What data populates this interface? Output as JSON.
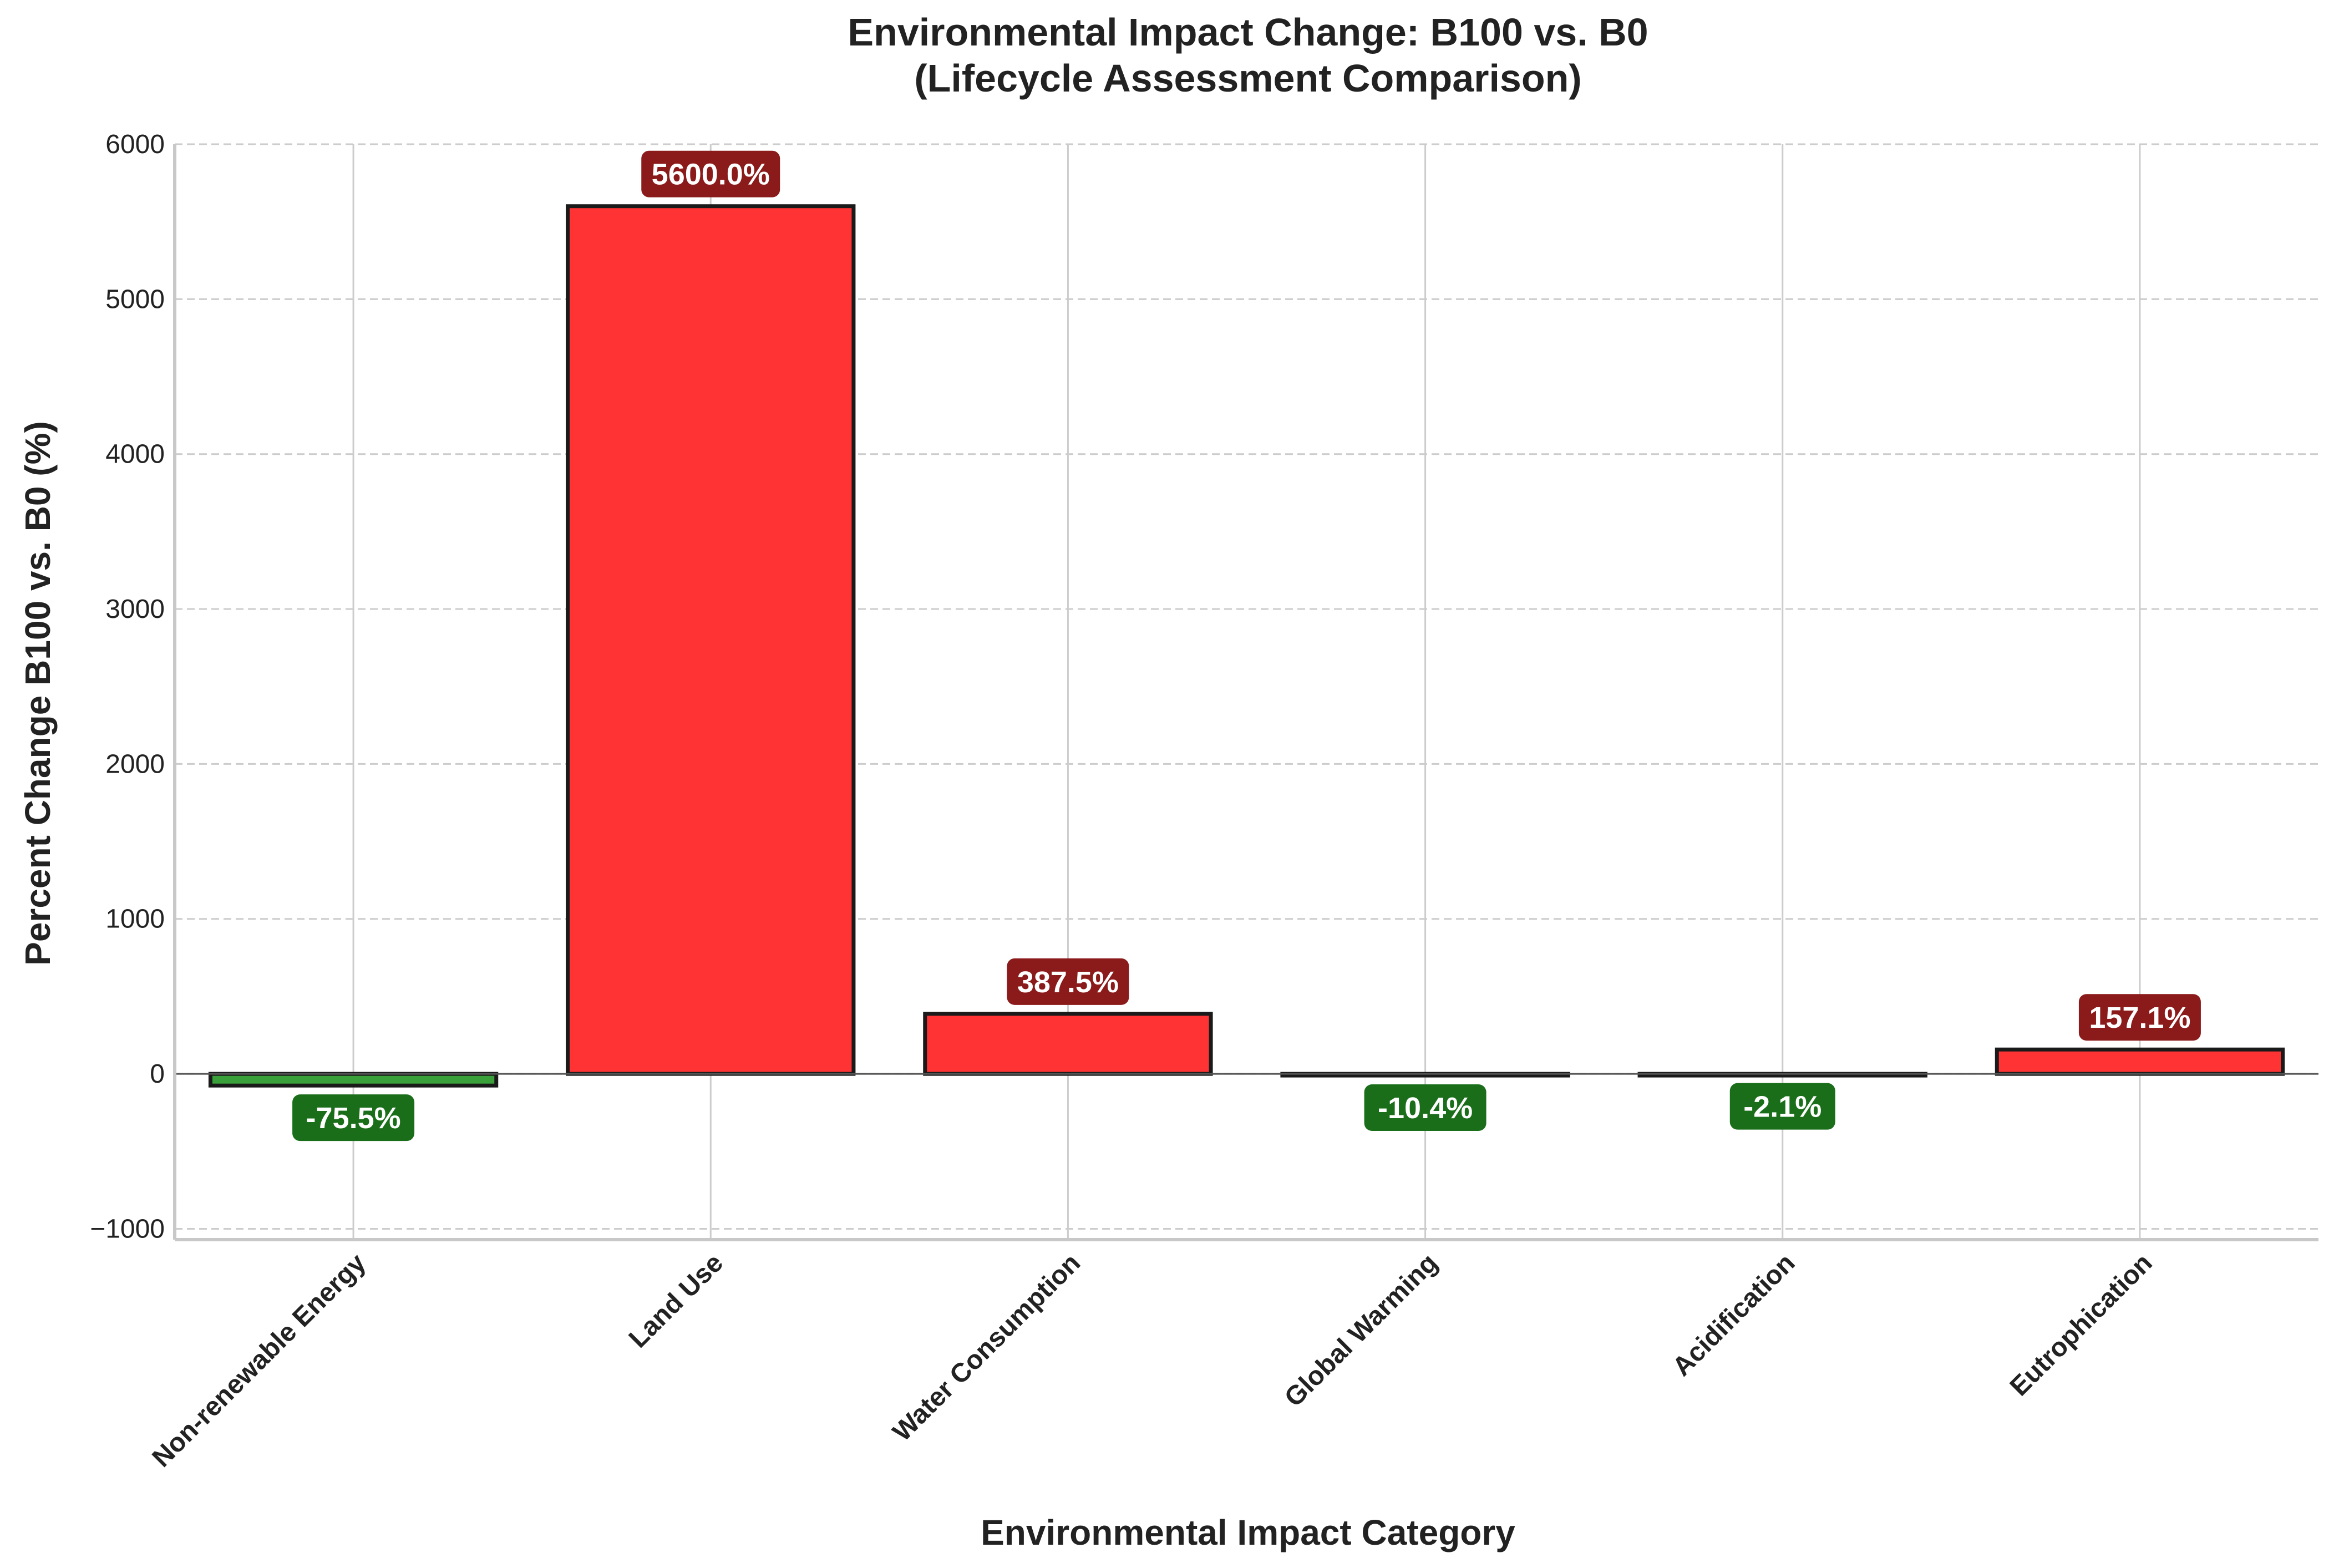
{
  "chart_data": {
    "type": "bar",
    "title_line1": "Environmental Impact Change: B100 vs. B0",
    "title_line2": "(Lifecycle Assessment Comparison)",
    "xlabel": "Environmental Impact Category",
    "ylabel": "Percent Change B100 vs. B0 (%)",
    "categories": [
      "Non-renewable Energy",
      "Land Use",
      "Water Consumption",
      "Global Warming",
      "Acidification",
      "Eutrophication"
    ],
    "values": [
      -75.5,
      5600.0,
      387.5,
      -10.4,
      -2.1,
      157.1
    ],
    "data_labels": [
      "-75.5%",
      "5600.0%",
      "387.5%",
      "-10.4%",
      "-2.1%",
      "157.1%"
    ],
    "ylim": [
      -1070,
      6000
    ],
    "yticks": [
      -1000,
      0,
      1000,
      2000,
      3000,
      4000,
      5000,
      6000
    ],
    "ytick_labels": [
      "−1000",
      "0",
      "1000",
      "2000",
      "3000",
      "4000",
      "5000",
      "6000"
    ],
    "grid": true,
    "colors": {
      "increase_bar": "#ff3333",
      "decrease_bar": "#3aa03a",
      "increase_label_bg": "#8b1a1a",
      "decrease_label_bg": "#1a6e1a",
      "bar_edge": "#1a1a1a",
      "grid": "#cccccc",
      "axis": "#c8c8c8",
      "zero_line": "#555555"
    }
  }
}
